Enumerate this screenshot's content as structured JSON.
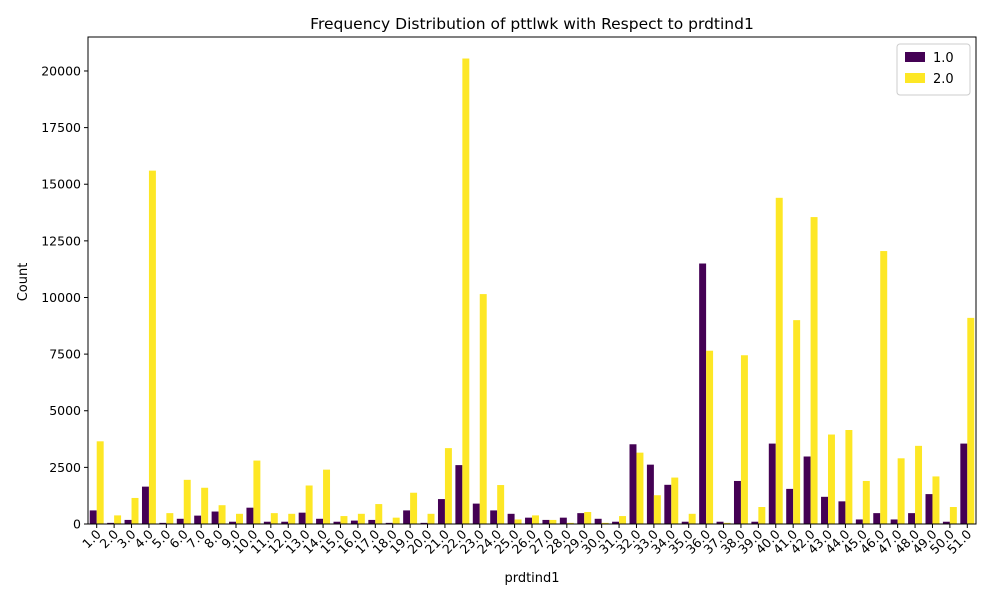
{
  "chart_data": {
    "type": "bar",
    "title": "Frequency Distribution of pttlwk with Respect to prdtind1",
    "xlabel": "prdtind1",
    "ylabel": "Count",
    "ylim": [
      0,
      21500
    ],
    "yticks": [
      0,
      2500,
      5000,
      7500,
      10000,
      12500,
      15000,
      17500,
      20000
    ],
    "ytick_labels": [
      "0",
      "2500",
      "5000",
      "7500",
      "10000",
      "12500",
      "15000",
      "17500",
      "20000"
    ],
    "grid": false,
    "legend_position": "top-right",
    "categories": [
      "1.0",
      "2.0",
      "3.0",
      "4.0",
      "5.0",
      "6.0",
      "7.0",
      "8.0",
      "9.0",
      "10.0",
      "11.0",
      "12.0",
      "13.0",
      "14.0",
      "15.0",
      "16.0",
      "17.0",
      "18.0",
      "19.0",
      "20.0",
      "21.0",
      "22.0",
      "23.0",
      "24.0",
      "25.0",
      "26.0",
      "27.0",
      "28.0",
      "29.0",
      "30.0",
      "31.0",
      "32.0",
      "33.0",
      "34.0",
      "35.0",
      "36.0",
      "37.0",
      "38.0",
      "39.0",
      "40.0",
      "41.0",
      "42.0",
      "43.0",
      "44.0",
      "45.0",
      "46.0",
      "47.0",
      "48.0",
      "49.0",
      "50.0",
      "51.0"
    ],
    "series": [
      {
        "name": "1.0",
        "color": "#440154",
        "values": [
          600,
          50,
          180,
          1650,
          50,
          230,
          370,
          550,
          100,
          720,
          100,
          100,
          500,
          230,
          100,
          150,
          180,
          50,
          600,
          50,
          1100,
          2600,
          900,
          600,
          450,
          280,
          180,
          280,
          480,
          230,
          100,
          3520,
          2620,
          1730,
          100,
          11500,
          100,
          1900,
          100,
          3550,
          1550,
          2980,
          1200,
          1000,
          200,
          480,
          200,
          480,
          1320,
          100,
          3550
        ]
      },
      {
        "name": "2.0",
        "color": "#fde725",
        "values": [
          3650,
          380,
          1150,
          15600,
          480,
          1950,
          1600,
          830,
          450,
          2800,
          480,
          450,
          1700,
          2400,
          350,
          450,
          880,
          280,
          1380,
          450,
          3350,
          20550,
          10150,
          1720,
          200,
          380,
          180,
          50,
          530,
          50,
          350,
          3150,
          1270,
          2050,
          450,
          7650,
          50,
          7450,
          750,
          14400,
          9000,
          13550,
          3950,
          4150,
          1900,
          12050,
          2900,
          3450,
          2100,
          750,
          9100
        ]
      }
    ]
  }
}
